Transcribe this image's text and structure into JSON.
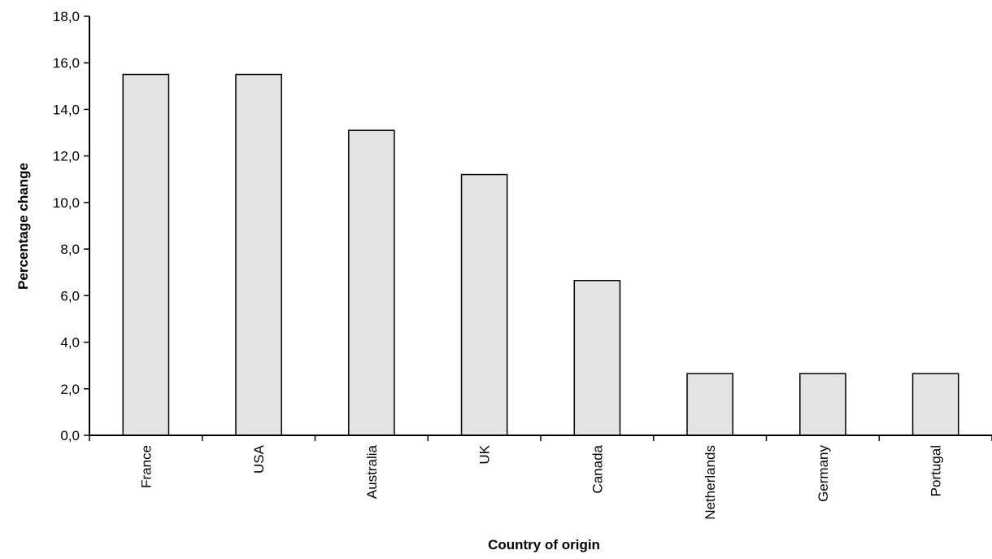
{
  "chart_data": {
    "type": "bar",
    "title": "",
    "xlabel": "Country of origin",
    "ylabel": "Percentage change",
    "categories": [
      "France",
      "USA",
      "Australia",
      "UK",
      "Canada",
      "Netherlands",
      "Germany",
      "Portugal"
    ],
    "values": [
      15.5,
      15.5,
      13.1,
      11.2,
      6.65,
      2.65,
      2.65,
      2.65
    ],
    "yticks": [
      "0,0",
      "2,0",
      "4,0",
      "6,0",
      "8,0",
      "10,0",
      "12,0",
      "14,0",
      "16,0",
      "18,0"
    ],
    "ylim": [
      0,
      18
    ],
    "grid": false,
    "legend": "none",
    "bar_fill": "#e3e3e3",
    "bar_stroke": "#000000"
  }
}
